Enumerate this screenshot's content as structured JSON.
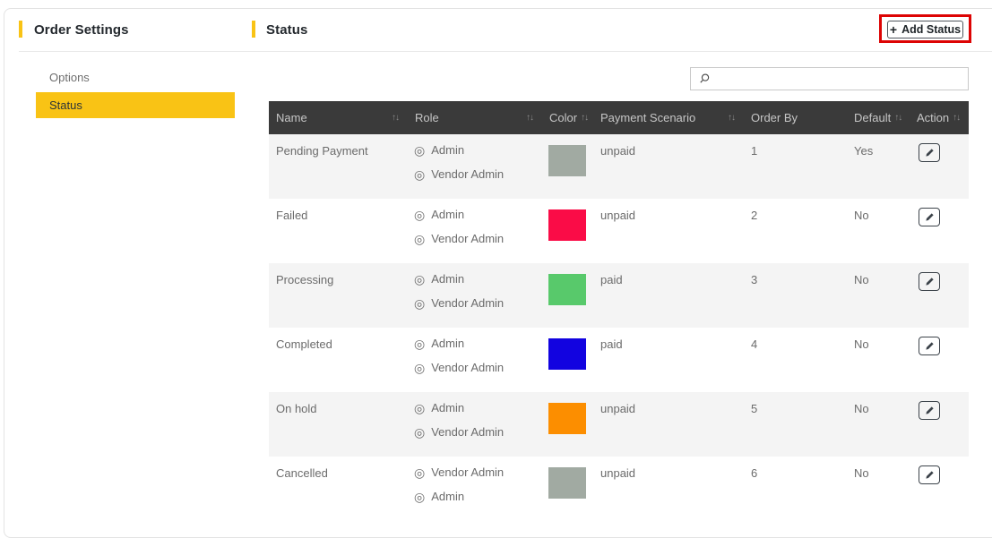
{
  "page": {
    "settings_title": "Order Settings",
    "section_title": "Status"
  },
  "toolbar": {
    "plus_icon": "+",
    "add_status_label": "Add Status"
  },
  "sidebar": {
    "items": [
      {
        "label": "Options",
        "active": false
      },
      {
        "label": "Status",
        "active": true
      }
    ]
  },
  "search": {
    "value": "",
    "placeholder": ""
  },
  "table": {
    "sort_icon": "↑↓",
    "role_icon": "◎",
    "columns": [
      {
        "label": "Name",
        "sortable": true
      },
      {
        "label": "Role",
        "sortable": true
      },
      {
        "label": "Color",
        "sortable": true
      },
      {
        "label": "Payment Scenario",
        "sortable": true
      },
      {
        "label": "Order By",
        "sortable": false
      },
      {
        "label": "Default",
        "sortable": true
      },
      {
        "label": "Action",
        "sortable": true
      }
    ],
    "rows": [
      {
        "name": "Pending Payment",
        "roles": [
          "Admin",
          "Vendor Admin"
        ],
        "color": "#a1aaa2",
        "payment_scenario": "unpaid",
        "order_by": "1",
        "default": "Yes"
      },
      {
        "name": "Failed",
        "roles": [
          "Admin",
          "Vendor Admin"
        ],
        "color": "#fa0c47",
        "payment_scenario": "unpaid",
        "order_by": "2",
        "default": "No"
      },
      {
        "name": "Processing",
        "roles": [
          "Admin",
          "Vendor Admin"
        ],
        "color": "#58c96b",
        "payment_scenario": "paid",
        "order_by": "3",
        "default": "No"
      },
      {
        "name": "Completed",
        "roles": [
          "Admin",
          "Vendor Admin"
        ],
        "color": "#1203e0",
        "payment_scenario": "paid",
        "order_by": "4",
        "default": "No"
      },
      {
        "name": "On hold",
        "roles": [
          "Admin",
          "Vendor Admin"
        ],
        "color": "#fc8e00",
        "payment_scenario": "unpaid",
        "order_by": "5",
        "default": "No"
      },
      {
        "name": "Cancelled",
        "roles": [
          "Vendor Admin",
          "Admin"
        ],
        "color": "#a1aaa2",
        "payment_scenario": "unpaid",
        "order_by": "6",
        "default": "No"
      }
    ]
  },
  "colors": {
    "accent_yellow": "#f9c315",
    "header_bg": "#3a3a3a",
    "row_alt": "#f4f4f4",
    "annotation_red": "#dd0404"
  }
}
